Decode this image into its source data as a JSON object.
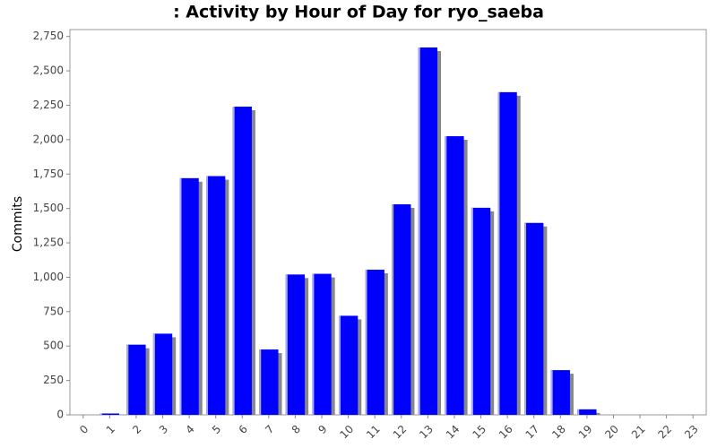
{
  "chart_data": {
    "type": "bar",
    "title": ": Activity by Hour of Day for ryo_saeba",
    "y_label": "Commits",
    "categories": [
      "0",
      "1",
      "2",
      "3",
      "4",
      "5",
      "6",
      "7",
      "8",
      "9",
      "10",
      "11",
      "12",
      "13",
      "14",
      "15",
      "16",
      "17",
      "18",
      "19",
      "20",
      "21",
      "22",
      "23"
    ],
    "values": [
      0,
      10,
      510,
      590,
      1720,
      1735,
      2240,
      475,
      1020,
      1025,
      720,
      1055,
      1530,
      2670,
      2025,
      1505,
      2345,
      1395,
      325,
      40,
      0,
      0,
      0,
      0
    ],
    "color": "#0000ff",
    "ylim": [
      0,
      2800
    ],
    "yticks": [
      0,
      250,
      500,
      750,
      {
        "value": 1000,
        "label": "1,000"
      },
      {
        "value": 1250,
        "label": "1,250"
      },
      {
        "value": 1500,
        "label": "1,500"
      },
      {
        "value": 1750,
        "label": "1,750"
      },
      {
        "value": 2000,
        "label": "2,000"
      },
      {
        "value": 2250,
        "label": "2,250"
      },
      {
        "value": 2500,
        "label": "2,500"
      },
      {
        "value": 2750,
        "label": "2,750"
      }
    ]
  }
}
